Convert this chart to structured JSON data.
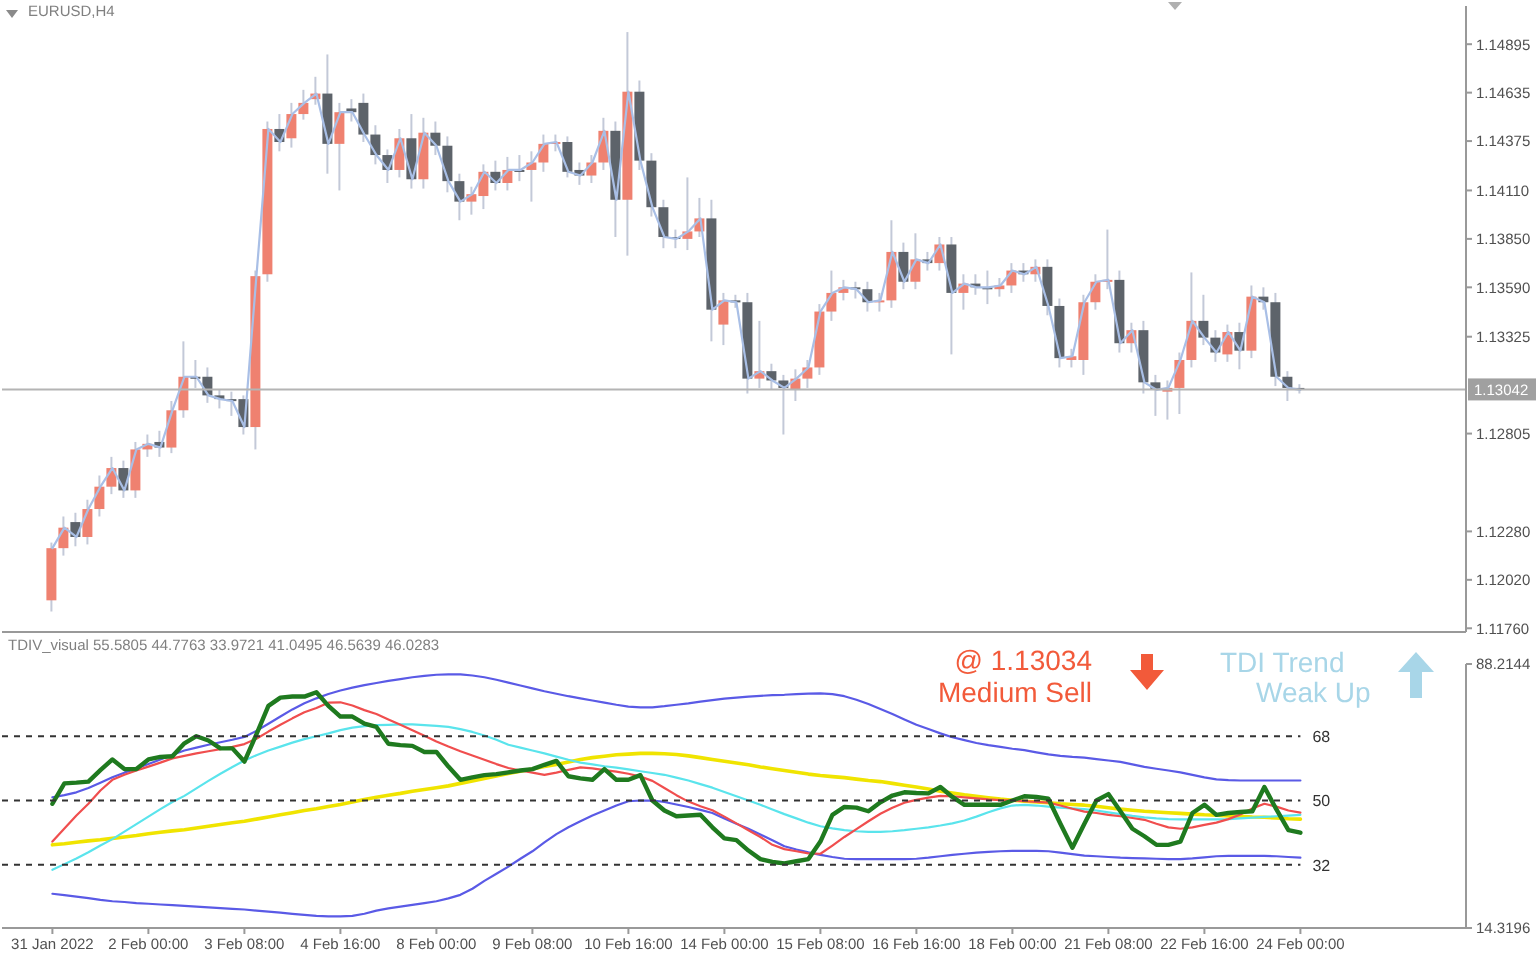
{
  "chart_data": [
    {
      "type": "candlestick",
      "annotations": [
        "EURUSD,H4"
      ],
      "categories": [
        null,
        null,
        null,
        null,
        null,
        null,
        null,
        null,
        null,
        null,
        null,
        null,
        null,
        null,
        null,
        null,
        null,
        null,
        null,
        null,
        null,
        null,
        null,
        null,
        null,
        null,
        null,
        null,
        null,
        null,
        null,
        null,
        null,
        null,
        null,
        null,
        null,
        null,
        null,
        null,
        null,
        null,
        null,
        null,
        null,
        null,
        null,
        null,
        null,
        null,
        null,
        null,
        null,
        null,
        null,
        null,
        null,
        null,
        null,
        null,
        null,
        null,
        null,
        null,
        null,
        null,
        null,
        null,
        null,
        null,
        null,
        null,
        null,
        null,
        null,
        null,
        null,
        null,
        null,
        null,
        null,
        null,
        null,
        null,
        null,
        null,
        null,
        null,
        null,
        null,
        null,
        null,
        null,
        null,
        null,
        null,
        null,
        null,
        null,
        null,
        null,
        null,
        null,
        null,
        null
      ],
      "ohlc": [
        [
          1.1191,
          1.1222,
          1.1185,
          1.1219
        ],
        [
          1.1219,
          1.1236,
          1.1215,
          1.123
        ],
        [
          1.1233,
          1.1238,
          1.122,
          1.1225
        ],
        [
          1.1225,
          1.1245,
          1.1221,
          1.124
        ],
        [
          1.124,
          1.1258,
          1.1236,
          1.1252
        ],
        [
          1.1252,
          1.1268,
          1.1248,
          1.1262
        ],
        [
          1.1262,
          1.1266,
          1.1246,
          1.125
        ],
        [
          1.125,
          1.1276,
          1.1246,
          1.1272
        ],
        [
          1.1272,
          1.128,
          1.1268,
          1.1275
        ],
        [
          1.1276,
          1.1282,
          1.1268,
          1.1273
        ],
        [
          1.1273,
          1.1298,
          1.127,
          1.1293
        ],
        [
          1.1293,
          1.133,
          1.1289,
          1.1311
        ],
        [
          1.1311,
          1.132,
          1.1305,
          1.1311
        ],
        [
          1.1311,
          1.1316,
          1.1297,
          1.1301
        ],
        [
          1.1301,
          1.1304,
          1.1294,
          1.1299
        ],
        [
          1.1299,
          1.1303,
          1.129,
          1.1298
        ],
        [
          1.1299,
          1.1301,
          1.128,
          1.1284
        ],
        [
          1.1284,
          1.1368,
          1.1272,
          1.1365
        ],
        [
          1.1366,
          1.1448,
          1.1362,
          1.1444
        ],
        [
          1.1444,
          1.1452,
          1.1432,
          1.1437
        ],
        [
          1.1439,
          1.1458,
          1.1434,
          1.1452
        ],
        [
          1.1452,
          1.1465,
          1.1449,
          1.1458
        ],
        [
          1.146,
          1.1472,
          1.1457,
          1.1463
        ],
        [
          1.1463,
          1.1484,
          1.142,
          1.1436
        ],
        [
          1.1436,
          1.1458,
          1.1411,
          1.1453
        ],
        [
          1.1455,
          1.146,
          1.1448,
          1.1453
        ],
        [
          1.1458,
          1.1463,
          1.1437,
          1.1441
        ],
        [
          1.1441,
          1.1446,
          1.1425,
          1.143
        ],
        [
          1.143,
          1.1433,
          1.1415,
          1.1422
        ],
        [
          1.1422,
          1.1444,
          1.1418,
          1.1439
        ],
        [
          1.1439,
          1.1452,
          1.1412,
          1.1417
        ],
        [
          1.1417,
          1.145,
          1.1412,
          1.1442
        ],
        [
          1.1442,
          1.1448,
          1.143,
          1.1435
        ],
        [
          1.1435,
          1.144,
          1.141,
          1.1416
        ],
        [
          1.1416,
          1.142,
          1.1395,
          1.1405
        ],
        [
          1.1405,
          1.1413,
          1.1398,
          1.1409
        ],
        [
          1.1408,
          1.1425,
          1.1401,
          1.1421
        ],
        [
          1.1421,
          1.1427,
          1.1411,
          1.1415
        ],
        [
          1.1415,
          1.1429,
          1.1411,
          1.1422
        ],
        [
          1.1422,
          1.143,
          1.1416,
          1.1422
        ],
        [
          1.1422,
          1.1432,
          1.1405,
          1.1426
        ],
        [
          1.1426,
          1.1441,
          1.1421,
          1.1436
        ],
        [
          1.1436,
          1.1441,
          1.1432,
          1.1437
        ],
        [
          1.1437,
          1.144,
          1.1418,
          1.1421
        ],
        [
          1.1422,
          1.1426,
          1.1414,
          1.1419
        ],
        [
          1.1419,
          1.143,
          1.1415,
          1.1426
        ],
        [
          1.1426,
          1.145,
          1.1422,
          1.1443
        ],
        [
          1.1443,
          1.1448,
          1.1386,
          1.1406
        ],
        [
          1.1406,
          1.1496,
          1.1376,
          1.1464
        ],
        [
          1.1464,
          1.147,
          1.1422,
          1.1427
        ],
        [
          1.1427,
          1.1431,
          1.1397,
          1.1402
        ],
        [
          1.1402,
          1.1406,
          1.138,
          1.1386
        ],
        [
          1.1386,
          1.139,
          1.138,
          1.1385
        ],
        [
          1.1385,
          1.1418,
          1.1379,
          1.1389
        ],
        [
          1.1389,
          1.1407,
          1.1386,
          1.1396
        ],
        [
          1.1396,
          1.1406,
          1.133,
          1.1347
        ],
        [
          1.1339,
          1.1356,
          1.1328,
          1.1352
        ],
        [
          1.1352,
          1.1355,
          1.1348,
          1.1351
        ],
        [
          1.1351,
          1.1356,
          1.1302,
          1.131
        ],
        [
          1.131,
          1.1341,
          1.1305,
          1.1314
        ],
        [
          1.1314,
          1.1318,
          1.1304,
          1.1309
        ],
        [
          1.1309,
          1.1312,
          1.128,
          1.1305
        ],
        [
          1.1304,
          1.1315,
          1.1298,
          1.131
        ],
        [
          1.131,
          1.132,
          1.1305,
          1.1316
        ],
        [
          1.1316,
          1.135,
          1.1312,
          1.1346
        ],
        [
          1.1346,
          1.1368,
          1.1341,
          1.1356
        ],
        [
          1.1356,
          1.1363,
          1.1352,
          1.1359
        ],
        [
          1.1359,
          1.1362,
          1.1353,
          1.1358
        ],
        [
          1.1358,
          1.1362,
          1.1346,
          1.1351
        ],
        [
          1.1351,
          1.1356,
          1.1346,
          1.1352
        ],
        [
          1.1352,
          1.1395,
          1.1348,
          1.1378
        ],
        [
          1.1378,
          1.1383,
          1.1358,
          1.1362
        ],
        [
          1.1362,
          1.1388,
          1.1358,
          1.1374
        ],
        [
          1.1374,
          1.1378,
          1.1368,
          1.1372
        ],
        [
          1.1372,
          1.1386,
          1.1368,
          1.1382
        ],
        [
          1.1382,
          1.1386,
          1.1323,
          1.1356
        ],
        [
          1.1356,
          1.1366,
          1.1347,
          1.1361
        ],
        [
          1.1361,
          1.1366,
          1.1355,
          1.1359
        ],
        [
          1.1359,
          1.1368,
          1.135,
          1.1359
        ],
        [
          1.1358,
          1.1364,
          1.1354,
          1.136
        ],
        [
          1.136,
          1.1372,
          1.1356,
          1.1368
        ],
        [
          1.1368,
          1.1372,
          1.1362,
          1.1366
        ],
        [
          1.1366,
          1.1374,
          1.1362,
          1.137
        ],
        [
          1.137,
          1.1374,
          1.1344,
          1.1349
        ],
        [
          1.1349,
          1.1353,
          1.1316,
          1.1321
        ],
        [
          1.132,
          1.1326,
          1.1316,
          1.1322
        ],
        [
          1.132,
          1.1355,
          1.1312,
          1.1351
        ],
        [
          1.1351,
          1.1366,
          1.1347,
          1.1362
        ],
        [
          1.1362,
          1.139,
          1.1358,
          1.1363
        ],
        [
          1.1363,
          1.1368,
          1.1324,
          1.1329
        ],
        [
          1.1329,
          1.134,
          1.1324,
          1.1336
        ],
        [
          1.1336,
          1.1341,
          1.1302,
          1.1308
        ],
        [
          1.1308,
          1.1312,
          1.129,
          1.1304
        ],
        [
          1.1303,
          1.1309,
          1.1288,
          1.1305
        ],
        [
          1.1305,
          1.1324,
          1.1291,
          1.132
        ],
        [
          1.132,
          1.1367,
          1.1316,
          1.1341
        ],
        [
          1.1341,
          1.1355,
          1.1328,
          1.1332
        ],
        [
          1.1332,
          1.1336,
          1.1319,
          1.1324
        ],
        [
          1.1323,
          1.1339,
          1.1319,
          1.1335
        ],
        [
          1.1335,
          1.134,
          1.1315,
          1.1325
        ],
        [
          1.1325,
          1.136,
          1.1321,
          1.1354
        ],
        [
          1.1354,
          1.1359,
          1.1347,
          1.1351
        ],
        [
          1.1351,
          1.1356,
          1.1306,
          1.1311
        ],
        [
          1.1311,
          1.1314,
          1.1298,
          1.1305
        ],
        [
          1.1305,
          1.1307,
          1.1302,
          1.1304
        ]
      ],
      "colors": [
        "#ef8170",
        "#ef8170",
        "#5d636a",
        "#ef8170",
        "#ef8170",
        "#ef8170",
        "#5d636a",
        "#ef8170",
        "#ef8170",
        "#5d636a",
        "#ef8170",
        "#ef8170",
        "#5d636a",
        "#5d636a",
        "#5d636a",
        "#5d636a",
        "#5d636a",
        "#ef8170",
        "#ef8170",
        "#5d636a",
        "#ef8170",
        "#ef8170",
        "#ef8170",
        "#5d636a",
        "#ef8170",
        "#5d636a",
        "#5d636a",
        "#5d636a",
        "#5d636a",
        "#ef8170",
        "#5d636a",
        "#ef8170",
        "#5d636a",
        "#5d636a",
        "#5d636a",
        "#ef8170",
        "#ef8170",
        "#5d636a",
        "#ef8170",
        "#5d636a",
        "#ef8170",
        "#ef8170",
        "#ef8170",
        "#5d636a",
        "#5d636a",
        "#ef8170",
        "#ef8170",
        "#5d636a",
        "#ef8170",
        "#5d636a",
        "#5d636a",
        "#5d636a",
        "#5d636a",
        "#ef8170",
        "#ef8170",
        "#5d636a",
        "#ef8170",
        "#5d636a",
        "#5d636a",
        "#ef8170",
        "#5d636a",
        "#5d636a",
        "#ef8170",
        "#ef8170",
        "#ef8170",
        "#ef8170",
        "#ef8170",
        "#5d636a",
        "#5d636a",
        "#ef8170",
        "#ef8170",
        "#5d636a",
        "#ef8170",
        "#5d636a",
        "#ef8170",
        "#5d636a",
        "#ef8170",
        "#5d636a",
        "#5d636a",
        "#ef8170",
        "#ef8170",
        "#5d636a",
        "#ef8170",
        "#5d636a",
        "#5d636a",
        "#ef8170",
        "#ef8170",
        "#ef8170",
        "#ef8170",
        "#5d636a",
        "#ef8170",
        "#5d636a",
        "#5d636a",
        "#ef8170",
        "#ef8170",
        "#ef8170",
        "#5d636a",
        "#5d636a",
        "#ef8170",
        "#5d636a",
        "#ef8170",
        "#5d636a",
        "#5d636a",
        "#5d636a",
        "#5d636a"
      ],
      "series": [
        {
          "type": "line",
          "color": "#a9bfe6",
          "values": [
            1.1219,
            1.123,
            1.1225,
            1.124,
            1.1252,
            1.1262,
            1.125,
            1.1272,
            1.1275,
            1.1273,
            1.1293,
            1.1311,
            1.1311,
            1.1301,
            1.1299,
            1.1298,
            1.1284,
            1.1365,
            1.1444,
            1.1437,
            1.1452,
            1.1458,
            1.1463,
            1.1436,
            1.1453,
            1.1453,
            1.1441,
            1.143,
            1.1422,
            1.1439,
            1.1417,
            1.1442,
            1.1435,
            1.1416,
            1.1405,
            1.1409,
            1.1421,
            1.1415,
            1.1422,
            1.1422,
            1.1426,
            1.1436,
            1.1437,
            1.1421,
            1.1419,
            1.1426,
            1.1443,
            1.1406,
            1.1464,
            1.1427,
            1.1402,
            1.1386,
            1.1385,
            1.1389,
            1.1396,
            1.1347,
            1.1352,
            1.1351,
            1.131,
            1.1314,
            1.1309,
            1.1305,
            1.131,
            1.1316,
            1.1346,
            1.1356,
            1.1359,
            1.1358,
            1.1351,
            1.1352,
            1.1378,
            1.1362,
            1.1374,
            1.1372,
            1.1382,
            1.1356,
            1.1361,
            1.1359,
            1.1359,
            1.136,
            1.1368,
            1.1366,
            1.137,
            1.1349,
            1.1321,
            1.1322,
            1.1351,
            1.1362,
            1.1363,
            1.1329,
            1.1336,
            1.1308,
            1.1304,
            1.1305,
            1.132,
            1.1341,
            1.1332,
            1.1324,
            1.1335,
            1.1325,
            1.1354,
            1.1351,
            1.1311,
            1.1305,
            1.1304
          ]
        }
      ],
      "ylim": [
        1.1174,
        1.151
      ],
      "yticks": [
        1.14895,
        1.14635,
        1.14375,
        {
          "value": 1.1411,
          "label": "1.14110"
        },
        {
          "value": 1.1385,
          "label": "1.13850"
        },
        {
          "value": 1.1359,
          "label": "1.13590"
        },
        1.13325,
        1.12805,
        {
          "value": 1.1228,
          "label": "1.12280"
        },
        {
          "value": 1.1202,
          "label": "1.12020"
        },
        {
          "value": 1.1176,
          "label": "1.11760"
        }
      ],
      "ref_lines": [
        {
          "axis": "y",
          "value": 1.13042,
          "label": "1.13042",
          "color": "#b4b4b4"
        }
      ]
    },
    {
      "type": "line",
      "annotations": [
        "TDIV_visual 55.5805 44.7763 33.9721 41.0495 46.5639 46.0283",
        "@ 1.13034",
        "Medium Sell",
        "TDI Trend",
        "Weak Up"
      ],
      "categories": [
        "31 Jan 2022",
        null,
        null,
        null,
        null,
        null,
        null,
        null,
        "2 Feb 00:00",
        null,
        null,
        null,
        null,
        null,
        null,
        null,
        "3 Feb 08:00",
        null,
        null,
        null,
        null,
        null,
        null,
        null,
        "4 Feb 16:00",
        null,
        null,
        null,
        null,
        null,
        null,
        null,
        "8 Feb 00:00",
        null,
        null,
        null,
        null,
        null,
        null,
        null,
        "9 Feb 08:00",
        null,
        null,
        null,
        null,
        null,
        null,
        null,
        "10 Feb 16:00",
        null,
        null,
        null,
        null,
        null,
        null,
        null,
        "14 Feb 00:00",
        null,
        null,
        null,
        null,
        null,
        null,
        null,
        "15 Feb 08:00",
        null,
        null,
        null,
        null,
        null,
        null,
        null,
        "16 Feb 16:00",
        null,
        null,
        null,
        null,
        null,
        null,
        null,
        "18 Feb 00:00",
        null,
        null,
        null,
        null,
        null,
        null,
        null,
        "21 Feb 08:00",
        null,
        null,
        null,
        null,
        null,
        null,
        null,
        "22 Feb 16:00",
        null,
        null,
        null,
        null,
        null,
        null,
        null,
        "24 Feb 00:00"
      ],
      "series": [
        {
          "color": "#5a5ae6",
          "values": [
            50.9,
            51.5,
            52.3,
            53.5,
            55.0,
            56.5,
            57.8,
            59.0,
            60.2,
            61.5,
            62.8,
            64.0,
            64.8,
            65.6,
            66.3,
            67.0,
            67.8,
            69.5,
            71.5,
            73.5,
            75.5,
            77.2,
            78.6,
            79.8,
            80.8,
            81.6,
            82.3,
            82.9,
            83.5,
            84.0,
            84.5,
            84.9,
            85.2,
            85.3,
            85.3,
            85.0,
            84.5,
            83.8,
            83.0,
            82.2,
            81.4,
            80.6,
            79.9,
            79.2,
            78.6,
            78.0,
            77.4,
            76.8,
            76.3,
            76.1,
            76.1,
            76.4,
            76.8,
            77.2,
            77.7,
            78.1,
            78.5,
            78.8,
            79.1,
            79.3,
            79.5,
            79.6,
            79.8,
            79.9,
            80.0,
            79.8,
            79.2,
            78.2,
            77.0,
            75.6,
            74.2,
            72.7,
            71.2,
            70.0,
            68.8,
            67.7,
            66.9,
            66.1,
            65.5,
            65.0,
            64.5,
            64.1,
            63.5,
            62.9,
            62.5,
            62.2,
            62.0,
            61.6,
            61.2,
            60.8,
            60.1,
            59.4,
            58.9,
            58.4,
            57.9,
            57.2,
            56.5,
            55.9,
            55.7,
            55.6,
            55.6,
            55.6,
            55.6,
            55.6,
            55.6
          ]
        },
        {
          "color": "#5a5ae6",
          "values": [
            23.9,
            23.5,
            23.1,
            22.7,
            22.2,
            21.8,
            21.6,
            21.3,
            21.1,
            20.9,
            20.7,
            20.5,
            20.3,
            20.1,
            19.9,
            19.7,
            19.5,
            19.2,
            18.9,
            18.6,
            18.3,
            18.0,
            17.7,
            17.6,
            17.6,
            17.7,
            18.3,
            19.2,
            19.8,
            20.3,
            20.8,
            21.3,
            21.8,
            22.6,
            23.6,
            25.3,
            27.5,
            29.5,
            31.5,
            33.7,
            35.8,
            38.3,
            40.6,
            42.5,
            44.2,
            45.8,
            47.2,
            48.6,
            49.8,
            50.0,
            50.0,
            49.6,
            48.9,
            48.2,
            47.4,
            46.5,
            45.0,
            43.5,
            42.1,
            40.5,
            38.9,
            37.2,
            36.3,
            35.5,
            34.8,
            34.2,
            33.7,
            33.6,
            33.6,
            33.6,
            33.6,
            33.6,
            33.7,
            34.0,
            34.4,
            34.8,
            35.1,
            35.4,
            35.6,
            35.8,
            35.9,
            35.9,
            35.9,
            35.8,
            35.4,
            35.0,
            34.6,
            34.4,
            34.2,
            34.0,
            33.9,
            33.8,
            33.7,
            33.6,
            33.6,
            33.8,
            34.1,
            34.4,
            34.5,
            34.5,
            34.5,
            34.5,
            34.4,
            34.2,
            34.0
          ]
        },
        {
          "color": "#f0e400",
          "values": [
            37.6,
            37.9,
            38.3,
            38.7,
            39.0,
            39.4,
            39.8,
            40.2,
            40.7,
            41.1,
            41.5,
            41.8,
            42.3,
            42.8,
            43.3,
            43.8,
            44.2,
            44.8,
            45.4,
            46.0,
            46.6,
            47.2,
            47.7,
            48.3,
            48.9,
            49.6,
            50.3,
            50.9,
            51.5,
            52.0,
            52.6,
            53.1,
            53.6,
            54.1,
            54.8,
            55.5,
            56.2,
            56.9,
            57.6,
            58.2,
            58.8,
            59.5,
            60.1,
            60.8,
            61.5,
            62.0,
            62.4,
            62.8,
            63.0,
            63.2,
            63.2,
            63.1,
            62.9,
            62.5,
            62.0,
            61.5,
            61.0,
            60.5,
            60.0,
            59.4,
            58.9,
            58.4,
            57.9,
            57.4,
            57.0,
            56.7,
            56.4,
            56.0,
            55.6,
            55.3,
            54.8,
            54.3,
            53.8,
            53.2,
            52.6,
            52.1,
            51.6,
            51.2,
            50.8,
            50.4,
            50.1,
            49.8,
            49.6,
            49.4,
            49.1,
            48.9,
            48.7,
            48.4,
            48.0,
            47.6,
            47.3,
            47.0,
            46.8,
            46.6,
            46.4,
            46.2,
            46.0,
            45.9,
            45.7,
            45.6,
            45.4,
            45.3,
            45.1,
            44.9,
            44.8
          ]
        },
        {
          "color": "#5ae4ec",
          "values": [
            30.6,
            32.2,
            33.8,
            35.5,
            37.4,
            39.2,
            41.3,
            43.4,
            45.5,
            47.6,
            49.6,
            51.3,
            53.4,
            55.5,
            57.5,
            59.4,
            61.2,
            62.7,
            64.0,
            65.1,
            66.2,
            67.2,
            68.0,
            68.8,
            69.7,
            70.4,
            70.8,
            71.1,
            71.2,
            71.3,
            71.3,
            71.1,
            70.9,
            70.6,
            70.0,
            69.2,
            68.2,
            67.0,
            65.6,
            64.8,
            64.0,
            63.2,
            62.3,
            61.4,
            60.6,
            60.1,
            59.6,
            59.2,
            58.7,
            58.2,
            57.7,
            57.2,
            56.4,
            55.6,
            54.6,
            53.6,
            52.4,
            51.2,
            50.0,
            48.8,
            47.5,
            46.2,
            45.0,
            43.8,
            42.8,
            42.2,
            41.7,
            41.4,
            41.2,
            41.2,
            41.4,
            41.7,
            42.1,
            42.5,
            43.0,
            43.6,
            44.4,
            45.5,
            46.7,
            47.8,
            48.6,
            48.8,
            48.6,
            48.3,
            48.0,
            47.8,
            47.6,
            47.2,
            46.7,
            46.2,
            45.7,
            45.3,
            45.0,
            44.8,
            44.7,
            44.7,
            44.7,
            44.7,
            44.8,
            45.0,
            45.2,
            45.4,
            45.6,
            45.8,
            46.0
          ]
        },
        {
          "color": "#f04e4e",
          "values": [
            38.5,
            42.2,
            45.8,
            49.1,
            52.8,
            55.8,
            57.2,
            58.4,
            59.5,
            60.6,
            61.8,
            62.5,
            63.2,
            63.8,
            64.4,
            65.0,
            65.8,
            67.3,
            69.3,
            71.2,
            73.0,
            74.7,
            75.9,
            77.4,
            77.5,
            76.6,
            75.3,
            74.2,
            72.7,
            71.2,
            69.7,
            68.1,
            66.5,
            65.1,
            63.8,
            62.6,
            61.4,
            60.2,
            59.1,
            58.4,
            57.8,
            57.2,
            57.8,
            58.6,
            59.3,
            59.0,
            58.5,
            58.1,
            57.5,
            56.7,
            55.5,
            53.5,
            51.5,
            49.7,
            48.4,
            47.3,
            45.5,
            43.6,
            41.7,
            39.8,
            37.6,
            36.4,
            35.8,
            35.2,
            35.1,
            37.4,
            39.8,
            42.0,
            44.2,
            46.3,
            48.0,
            49.4,
            50.2,
            50.8,
            51.3,
            51.2,
            50.9,
            50.6,
            50.3,
            50.1,
            50.0,
            49.8,
            49.6,
            49.4,
            48.6,
            47.7,
            46.9,
            46.5,
            46.0,
            45.6,
            45.1,
            44.6,
            43.5,
            42.5,
            42.1,
            42.5,
            43.2,
            43.8,
            44.8,
            46.1,
            47.8,
            49.1,
            48.3,
            47.2,
            46.6
          ]
        },
        {
          "color": "#1f7a1f",
          "values": [
            49.1,
            54.8,
            55.0,
            55.3,
            58.5,
            61.5,
            58.8,
            58.8,
            61.5,
            62.2,
            62.4,
            66.0,
            68.0,
            66.8,
            64.6,
            64.6,
            60.9,
            68.5,
            76.5,
            78.8,
            79.1,
            79.1,
            80.3,
            76.5,
            73.5,
            73.5,
            71.5,
            70.6,
            65.9,
            65.5,
            65.3,
            63.6,
            63.6,
            59.5,
            55.8,
            56.5,
            57.1,
            57.4,
            57.9,
            58.4,
            58.8,
            60.0,
            61.1,
            56.8,
            56.2,
            55.8,
            58.8,
            55.8,
            55.8,
            57.1,
            50.0,
            47.2,
            45.6,
            45.8,
            46.0,
            42.5,
            39.4,
            38.9,
            36.0,
            33.6,
            32.8,
            32.4,
            33.0,
            33.6,
            38.5,
            46.0,
            48.2,
            48.0,
            47.0,
            49.5,
            51.4,
            52.3,
            52.1,
            52.0,
            53.8,
            51.0,
            48.8,
            48.8,
            48.8,
            48.8,
            50.0,
            51.2,
            51.0,
            50.5,
            43.5,
            36.8,
            43.5,
            50.0,
            51.8,
            47.0,
            42.1,
            40.0,
            37.6,
            37.6,
            38.5,
            46.5,
            48.8,
            46.0,
            46.5,
            46.8,
            47.0,
            53.8,
            47.5,
            41.7,
            41.0
          ]
        }
      ],
      "ylim": [
        14.3196,
        88.2144
      ],
      "yticks": [
        14.3196,
        88.2144
      ],
      "ref_lines": [
        {
          "axis": "y",
          "value": 68,
          "label": "68",
          "line_style": "dashed",
          "color": "#333333"
        },
        {
          "axis": "y",
          "value": 50,
          "label": "50",
          "line_style": "dashed",
          "color": "#333333"
        },
        {
          "axis": "y",
          "value": 32,
          "label": "32",
          "line_style": "dashed",
          "color": "#333333"
        }
      ]
    }
  ]
}
